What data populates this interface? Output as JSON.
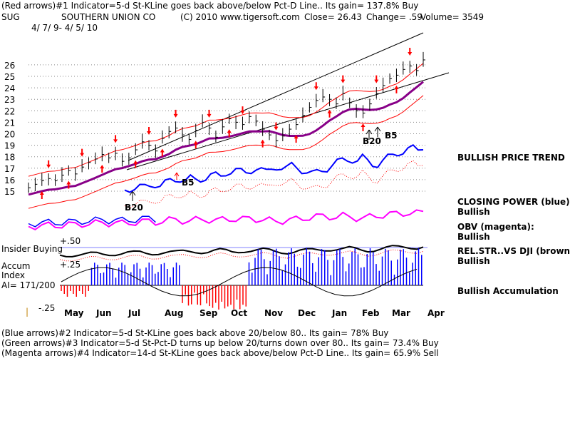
{
  "header": {
    "line1": "(Red arrows)#1 Indicator=5-d St-KLine goes back above/below Pct-D Line.. Its gain= 137.8% Buy",
    "symbol": "SUG",
    "company": "SOUTHERN UNION CO",
    "copyright": "(C) 2010 www.tigersoft.com",
    "close": "Close=  26.43",
    "change": "Change= .59",
    "volume": "Volume= 3549",
    "dates": "4/ 7/ 9- 4/ 5/ 10"
  },
  "right_labels": {
    "price_trend": "BULLISH PRICE TREND",
    "closing_power": "CLOSING POWER (blue):",
    "closing_power_value": "Bullish",
    "obv": "OBV (magenta):",
    "obv_value": "Bullish",
    "relstr": "REL.STR..VS DJI (brown):",
    "relstr_value": "Bullish",
    "accum": "Bullish Accumulation"
  },
  "left_labels": {
    "insider": "Insider Buying",
    "plus50": "+.50",
    "plus25": "+.25",
    "accum": "Accum",
    "index": "Index",
    "ai": "AI= 171/200",
    "minus25": "-.25",
    "tick_mark": "|"
  },
  "footer": {
    "line1": "(Blue arrows)#2 Indicator=5-d St-KLine goes back above 20/below 80.. Its gain= 78% Buy",
    "line2": "(Green arrows)#3 Indicator=5-d St-Pct-D turns up below 20/turns down over 80.. Its gain= 73.4% Buy",
    "line3": "(Magenta arrows)#4 Indicator=14-d St-KLine goes back above/below Pct-D Line.. Its gain= 65.9% Sell"
  },
  "annotations": {
    "b20_a": "B20",
    "b5_a": "B5",
    "b20_b": "B20",
    "b5_b": "B5"
  },
  "chart_data": {
    "type": "line",
    "ylim": [
      14.5,
      26.5
    ],
    "yticks": [
      15,
      16,
      17,
      18,
      19,
      20,
      21,
      22,
      23,
      24,
      25,
      26
    ],
    "months": [
      "May",
      "Jun",
      "Jul",
      "Aug",
      "Sep",
      "Oct",
      "Nov",
      "Dec",
      "Jan",
      "Feb",
      "Mar",
      "Apr"
    ],
    "grid": true,
    "colors": {
      "price": "#000000",
      "bands": "#ff0000",
      "moving_average": "#880088",
      "closing_power": "#0000ff",
      "obv": "#ff00ff",
      "relstr": "#000000",
      "accum_pos": "#0000ff",
      "accum_neg": "#ff0000",
      "arrows": "#ff0000",
      "insider_line": "#8080ff"
    },
    "price_closes": [
      15.3,
      15.6,
      15.9,
      16.1,
      15.9,
      16.4,
      16.8,
      16.5,
      17.1,
      17.5,
      17.8,
      18.2,
      17.9,
      18.3,
      17.6,
      17.9,
      18.6,
      19.3,
      19.0,
      18.5,
      19.6,
      20.2,
      20.5,
      19.9,
      19.5,
      20.3,
      21.0,
      20.5,
      19.7,
      20.6,
      21.3,
      21.0,
      20.8,
      21.5,
      21.1,
      20.4,
      19.9,
      19.4,
      19.8,
      20.4,
      20.8,
      21.6,
      22.3,
      22.9,
      23.2,
      23.0,
      22.6,
      23.5,
      22.7,
      22.0,
      21.8,
      22.6,
      23.5,
      24.2,
      24.8,
      25.1,
      25.6,
      25.9,
      25.5,
      26.43
    ]
  }
}
